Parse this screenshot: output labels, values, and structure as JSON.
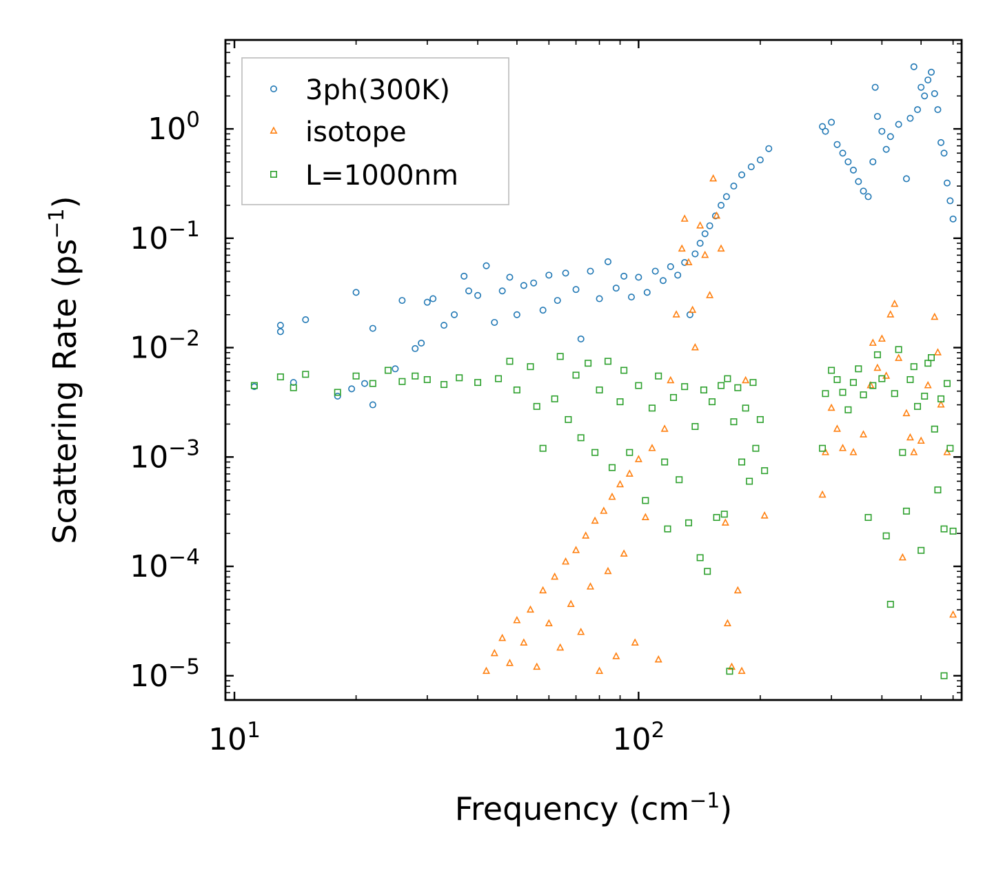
{
  "chart_data": {
    "type": "scatter",
    "xscale": "log",
    "yscale": "log",
    "xlabel": "Frequency (cm",
    "xlabel_sup": "−1",
    "xlabel_end": ")",
    "ylabel": "Scattering Rate (ps",
    "ylabel_sup": "−1",
    "ylabel_end": ")",
    "xlim": [
      9.5,
      630
    ],
    "ylim": [
      6e-06,
      6.5
    ],
    "x_ticks": [
      {
        "value": 10,
        "base": "10",
        "exp": "1"
      },
      {
        "value": 100,
        "base": "10",
        "exp": "2"
      }
    ],
    "y_ticks": [
      {
        "value": 1,
        "base": "10",
        "exp": "0"
      },
      {
        "value": 0.1,
        "base": "10",
        "exp": "−1"
      },
      {
        "value": 0.01,
        "base": "10",
        "exp": "−2"
      },
      {
        "value": 0.001,
        "base": "10",
        "exp": "−3"
      },
      {
        "value": 0.0001,
        "base": "10",
        "exp": "−4"
      },
      {
        "value": 1e-05,
        "base": "10",
        "exp": "−5"
      }
    ],
    "legend_position": "top-left",
    "series": [
      {
        "name": "3ph(300K)",
        "marker": "circle",
        "color": "#1f77b4",
        "points": [
          [
            11.2,
            0.0044
          ],
          [
            13,
            0.016
          ],
          [
            13,
            0.014
          ],
          [
            14,
            0.0048
          ],
          [
            15,
            0.018
          ],
          [
            18,
            0.0036
          ],
          [
            19.5,
            0.0042
          ],
          [
            20,
            0.032
          ],
          [
            21,
            0.0047
          ],
          [
            22,
            0.015
          ],
          [
            22,
            0.003
          ],
          [
            25,
            0.0064
          ],
          [
            26,
            0.027
          ],
          [
            28,
            0.0098
          ],
          [
            29,
            0.011
          ],
          [
            30,
            0.026
          ],
          [
            31,
            0.028
          ],
          [
            33,
            0.016
          ],
          [
            35,
            0.02
          ],
          [
            37,
            0.045
          ],
          [
            38,
            0.033
          ],
          [
            40,
            0.03
          ],
          [
            42,
            0.056
          ],
          [
            44,
            0.017
          ],
          [
            46,
            0.033
          ],
          [
            48,
            0.044
          ],
          [
            50,
            0.02
          ],
          [
            52,
            0.037
          ],
          [
            55,
            0.039
          ],
          [
            58,
            0.022
          ],
          [
            60,
            0.046
          ],
          [
            63,
            0.027
          ],
          [
            66,
            0.048
          ],
          [
            70,
            0.034
          ],
          [
            72,
            0.012
          ],
          [
            76,
            0.05
          ],
          [
            80,
            0.028
          ],
          [
            84,
            0.061
          ],
          [
            88,
            0.035
          ],
          [
            92,
            0.045
          ],
          [
            96,
            0.029
          ],
          [
            100,
            0.044
          ],
          [
            105,
            0.032
          ],
          [
            110,
            0.05
          ],
          [
            115,
            0.041
          ],
          [
            120,
            0.055
          ],
          [
            125,
            0.046
          ],
          [
            130,
            0.06
          ],
          [
            134,
            0.02
          ],
          [
            138,
            0.072
          ],
          [
            142,
            0.09
          ],
          [
            146,
            0.11
          ],
          [
            150,
            0.13
          ],
          [
            155,
            0.16
          ],
          [
            160,
            0.2
          ],
          [
            165,
            0.24
          ],
          [
            172,
            0.3
          ],
          [
            180,
            0.38
          ],
          [
            190,
            0.45
          ],
          [
            200,
            0.52
          ],
          [
            210,
            0.66
          ],
          [
            285,
            1.05
          ],
          [
            290,
            0.95
          ],
          [
            300,
            1.15
          ],
          [
            310,
            0.72
          ],
          [
            320,
            0.6
          ],
          [
            330,
            0.5
          ],
          [
            340,
            0.42
          ],
          [
            350,
            0.33
          ],
          [
            360,
            0.27
          ],
          [
            370,
            0.24
          ],
          [
            380,
            0.5
          ],
          [
            385,
            2.4
          ],
          [
            390,
            1.3
          ],
          [
            400,
            0.95
          ],
          [
            410,
            0.65
          ],
          [
            420,
            0.85
          ],
          [
            440,
            1.1
          ],
          [
            460,
            0.35
          ],
          [
            470,
            1.25
          ],
          [
            480,
            3.7
          ],
          [
            490,
            1.5
          ],
          [
            500,
            2.4
          ],
          [
            510,
            2.0
          ],
          [
            520,
            2.8
          ],
          [
            530,
            3.3
          ],
          [
            540,
            2.1
          ],
          [
            550,
            1.5
          ],
          [
            560,
            0.75
          ],
          [
            570,
            0.6
          ],
          [
            580,
            0.32
          ],
          [
            590,
            0.22
          ],
          [
            600,
            0.15
          ]
        ]
      },
      {
        "name": "isotope",
        "marker": "triangle",
        "color": "#ff7f0e",
        "points": [
          [
            42,
            1.1e-05
          ],
          [
            44,
            1.6e-05
          ],
          [
            46,
            2.2e-05
          ],
          [
            48,
            1.3e-05
          ],
          [
            50,
            3.2e-05
          ],
          [
            52,
            2e-05
          ],
          [
            54,
            4e-05
          ],
          [
            56,
            1.2e-05
          ],
          [
            58,
            6e-05
          ],
          [
            60,
            3e-05
          ],
          [
            62,
            8e-05
          ],
          [
            64,
            1.8e-05
          ],
          [
            66,
            0.00011
          ],
          [
            68,
            4.5e-05
          ],
          [
            70,
            0.00014
          ],
          [
            72,
            2.5e-05
          ],
          [
            74,
            0.00019
          ],
          [
            76,
            6.5e-05
          ],
          [
            78,
            0.00026
          ],
          [
            80,
            1.1e-05
          ],
          [
            82,
            0.00032
          ],
          [
            84,
            9e-05
          ],
          [
            86,
            0.00043
          ],
          [
            88,
            1.5e-05
          ],
          [
            90,
            0.00056
          ],
          [
            92,
            0.00013
          ],
          [
            95,
            0.0007
          ],
          [
            98,
            2e-05
          ],
          [
            100,
            0.00095
          ],
          [
            104,
            0.00028
          ],
          [
            108,
            0.0012
          ],
          [
            112,
            1.4e-05
          ],
          [
            116,
            0.0018
          ],
          [
            120,
            0.005
          ],
          [
            124,
            0.02
          ],
          [
            128,
            0.08
          ],
          [
            130,
            0.15
          ],
          [
            133,
            0.06
          ],
          [
            136,
            0.022
          ],
          [
            138,
            0.01
          ],
          [
            142,
            0.13
          ],
          [
            146,
            0.07
          ],
          [
            150,
            0.03
          ],
          [
            153,
            0.35
          ],
          [
            156,
            0.16
          ],
          [
            160,
            0.08
          ],
          [
            164,
            0.00025
          ],
          [
            166,
            3e-05
          ],
          [
            170,
            1.2e-05
          ],
          [
            176,
            6e-05
          ],
          [
            180,
            1.1e-05
          ],
          [
            184,
            0.005
          ],
          [
            205,
            0.00029
          ],
          [
            285,
            0.00045
          ],
          [
            290,
            0.0011
          ],
          [
            300,
            0.0028
          ],
          [
            310,
            0.0018
          ],
          [
            320,
            0.0012
          ],
          [
            340,
            0.0011
          ],
          [
            360,
            0.0016
          ],
          [
            375,
            0.0045
          ],
          [
            380,
            0.011
          ],
          [
            390,
            0.0065
          ],
          [
            400,
            0.012
          ],
          [
            410,
            0.0055
          ],
          [
            420,
            0.02
          ],
          [
            430,
            0.025
          ],
          [
            440,
            0.008
          ],
          [
            450,
            0.00012
          ],
          [
            460,
            0.0025
          ],
          [
            470,
            0.0015
          ],
          [
            480,
            0.0011
          ],
          [
            500,
            0.0014
          ],
          [
            520,
            0.0045
          ],
          [
            540,
            0.019
          ],
          [
            550,
            0.009
          ],
          [
            560,
            0.003
          ],
          [
            580,
            0.0011
          ],
          [
            600,
            3.6e-05
          ]
        ]
      },
      {
        "name": "L=1000nm",
        "marker": "square",
        "color": "#2ca02c",
        "points": [
          [
            11.2,
            0.0045
          ],
          [
            13,
            0.0054
          ],
          [
            14,
            0.0043
          ],
          [
            15,
            0.0057
          ],
          [
            18,
            0.0039
          ],
          [
            20,
            0.0055
          ],
          [
            22,
            0.0047
          ],
          [
            24,
            0.0062
          ],
          [
            26,
            0.0049
          ],
          [
            28,
            0.0055
          ],
          [
            30,
            0.0051
          ],
          [
            33,
            0.0046
          ],
          [
            36,
            0.0053
          ],
          [
            40,
            0.0048
          ],
          [
            45,
            0.0052
          ],
          [
            48,
            0.0075
          ],
          [
            50,
            0.0041
          ],
          [
            54,
            0.0067
          ],
          [
            56,
            0.0029
          ],
          [
            58,
            0.0012
          ],
          [
            62,
            0.0034
          ],
          [
            64,
            0.0083
          ],
          [
            67,
            0.0022
          ],
          [
            70,
            0.0056
          ],
          [
            72,
            0.0015
          ],
          [
            75,
            0.0072
          ],
          [
            78,
            0.0011
          ],
          [
            80,
            0.0041
          ],
          [
            84,
            0.0075
          ],
          [
            86,
            0.0008
          ],
          [
            90,
            0.0032
          ],
          [
            92,
            0.0062
          ],
          [
            95,
            0.0011
          ],
          [
            100,
            0.0045
          ],
          [
            104,
            0.0004
          ],
          [
            108,
            0.0028
          ],
          [
            112,
            0.0055
          ],
          [
            116,
            0.0009
          ],
          [
            118,
            0.00022
          ],
          [
            122,
            0.0035
          ],
          [
            126,
            0.00062
          ],
          [
            130,
            0.0044
          ],
          [
            133,
            0.00025
          ],
          [
            138,
            0.0019
          ],
          [
            142,
            0.00012
          ],
          [
            145,
            0.0041
          ],
          [
            148,
            9e-05
          ],
          [
            152,
            0.0032
          ],
          [
            156,
            0.00028
          ],
          [
            160,
            0.0045
          ],
          [
            163,
            0.0003
          ],
          [
            166,
            0.0052
          ],
          [
            168,
            1.1e-05
          ],
          [
            172,
            0.0021
          ],
          [
            176,
            0.0043
          ],
          [
            180,
            0.0009
          ],
          [
            184,
            0.0028
          ],
          [
            188,
            0.0006
          ],
          [
            192,
            0.0048
          ],
          [
            195,
            0.0012
          ],
          [
            200,
            0.0022
          ],
          [
            205,
            0.00075
          ],
          [
            285,
            0.0012
          ],
          [
            290,
            0.0038
          ],
          [
            300,
            0.0062
          ],
          [
            310,
            0.0051
          ],
          [
            320,
            0.0039
          ],
          [
            330,
            0.0027
          ],
          [
            340,
            0.0048
          ],
          [
            350,
            0.0064
          ],
          [
            360,
            0.0037
          ],
          [
            370,
            0.00028
          ],
          [
            380,
            0.0045
          ],
          [
            390,
            0.0086
          ],
          [
            400,
            0.0052
          ],
          [
            410,
            0.00019
          ],
          [
            420,
            4.5e-05
          ],
          [
            430,
            0.0038
          ],
          [
            440,
            0.0096
          ],
          [
            450,
            0.0011
          ],
          [
            460,
            0.00032
          ],
          [
            470,
            0.0051
          ],
          [
            480,
            0.0067
          ],
          [
            490,
            0.0029
          ],
          [
            500,
            0.00014
          ],
          [
            510,
            0.0036
          ],
          [
            520,
            0.0072
          ],
          [
            530,
            0.0081
          ],
          [
            540,
            0.0018
          ],
          [
            550,
            0.0005
          ],
          [
            560,
            0.0034
          ],
          [
            570,
            0.00022
          ],
          [
            580,
            0.0047
          ],
          [
            590,
            0.0012
          ],
          [
            600,
            0.00021
          ],
          [
            570,
            1e-05
          ]
        ]
      }
    ]
  }
}
